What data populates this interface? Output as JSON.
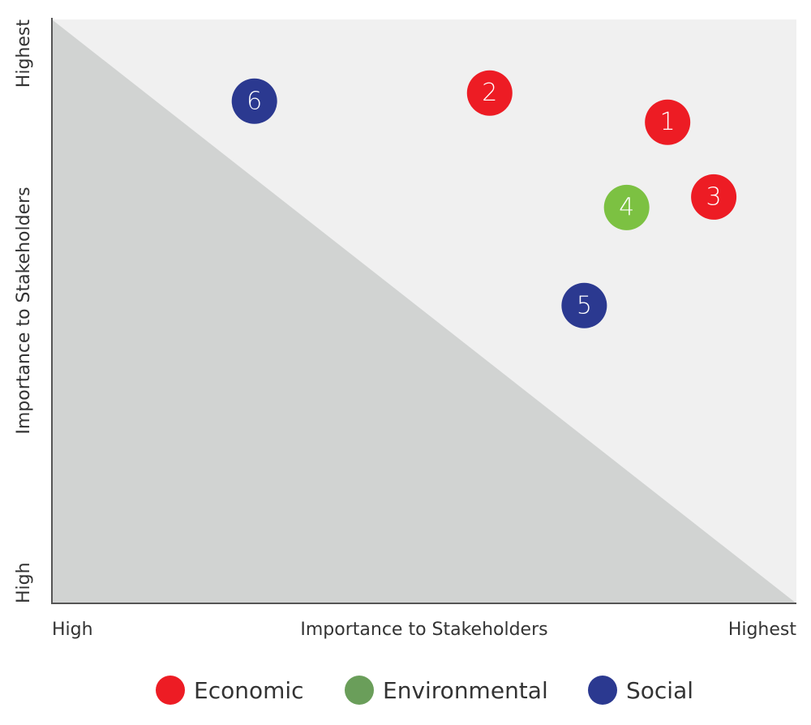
{
  "chart_data": {
    "type": "scatter",
    "x_label": "Importance to Stakeholders",
    "y_label": "Importance to Stakeholders",
    "xlim": [
      0,
      100
    ],
    "ylim": [
      0,
      100
    ],
    "xticks": [
      {
        "value": 0,
        "label": "High"
      },
      {
        "value": 100,
        "label": "Highest"
      }
    ],
    "yticks": [
      {
        "value": 0,
        "label": "High"
      },
      {
        "value": 100,
        "label": "Highest"
      }
    ],
    "series": [
      {
        "name": "Economic",
        "color": "#ed1c24",
        "legend_color": "#ed1c24",
        "x": [
          82.7,
          58.8,
          88.9
        ],
        "values": [
          82.4,
          87.4,
          69.6
        ],
        "labels": [
          "1",
          "2",
          "3"
        ]
      },
      {
        "name": "Environmental",
        "color": "#7cc142",
        "legend_color": "#6a9e5a",
        "x": [
          77.2
        ],
        "values": [
          67.8
        ],
        "labels": [
          "4"
        ]
      },
      {
        "name": "Social",
        "color": "#2b3990",
        "legend_color": "#2b3990",
        "x": [
          71.5,
          27.2
        ],
        "values": [
          51.0,
          86.0
        ],
        "labels": [
          "5",
          "6"
        ]
      }
    ]
  }
}
